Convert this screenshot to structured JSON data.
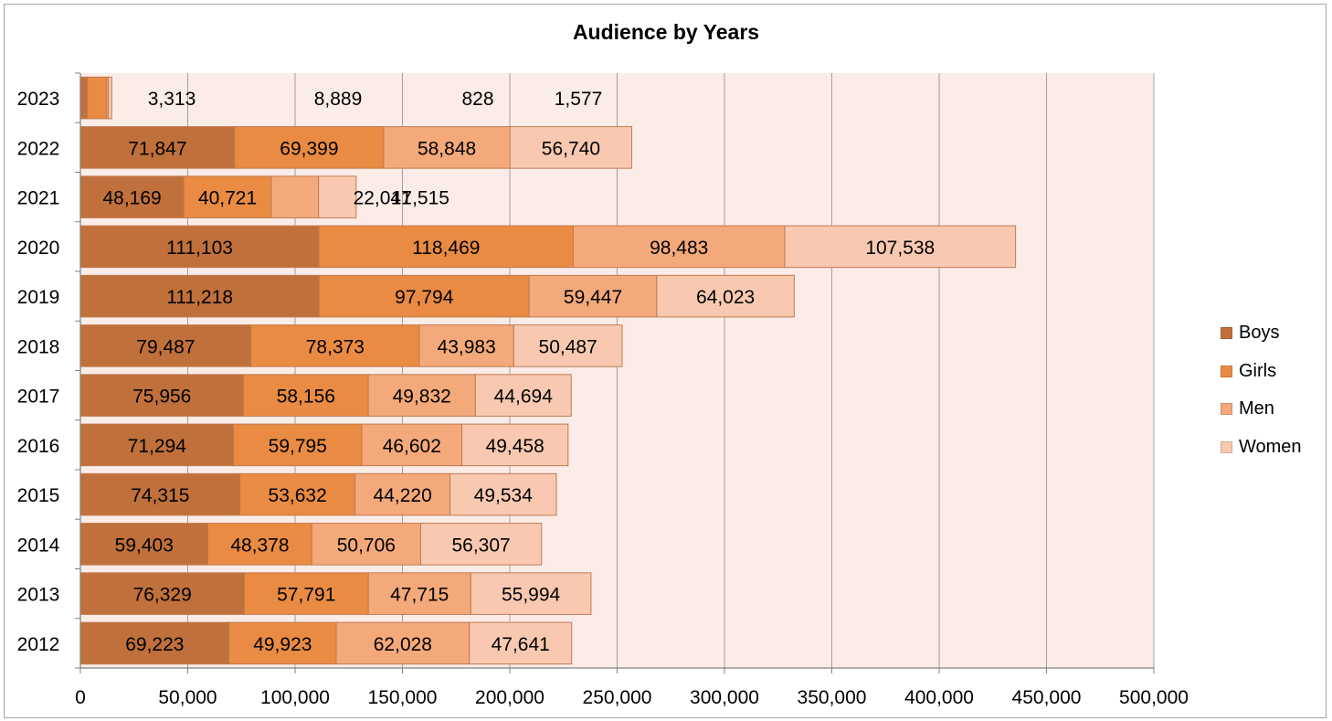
{
  "chart_data": {
    "type": "bar",
    "orientation": "horizontal",
    "stacked": true,
    "title": "Audience by Years",
    "categories": [
      "2023",
      "2022",
      "2021",
      "2020",
      "2019",
      "2018",
      "2017",
      "2016",
      "2015",
      "2014",
      "2013",
      "2012"
    ],
    "series": [
      {
        "name": "Boys",
        "color": "#c0703a",
        "values": [
          3313,
          71847,
          48169,
          111103,
          111218,
          79487,
          75956,
          71294,
          74315,
          59403,
          76329,
          69223
        ]
      },
      {
        "name": "Girls",
        "color": "#e98b43",
        "values": [
          8889,
          69399,
          40721,
          118469,
          97794,
          78373,
          58156,
          59795,
          53632,
          48378,
          57791,
          49923
        ]
      },
      {
        "name": "Men",
        "color": "#f4a97a",
        "values": [
          828,
          58848,
          22041,
          98483,
          59447,
          43983,
          49832,
          46602,
          44220,
          50706,
          47715,
          62028
        ]
      },
      {
        "name": "Women",
        "color": "#f8c9b0",
        "values": [
          1577,
          56740,
          17515,
          107538,
          64023,
          50487,
          44694,
          49458,
          49534,
          56307,
          55994,
          47641
        ]
      }
    ],
    "data_labels": [
      [
        "3,313",
        "8,889",
        "828",
        "1,577"
      ],
      [
        "71,847",
        "69,399",
        "58,848",
        "56,740"
      ],
      [
        "48,169",
        "40,721",
        "22,041",
        "17,515"
      ],
      [
        "111,103",
        "118,469",
        "98,483",
        "107,538"
      ],
      [
        "111,218",
        "97,794",
        "59,447",
        "64,023"
      ],
      [
        "79,487",
        "78,373",
        "43,983",
        "50,487"
      ],
      [
        "75,956",
        "58,156",
        "49,832",
        "44,694"
      ],
      [
        "71,294",
        "59,795",
        "46,602",
        "49,458"
      ],
      [
        "74,315",
        "53,632",
        "44,220",
        "49,534"
      ],
      [
        "59,403",
        "48,378",
        "50,706",
        "56,307"
      ],
      [
        "76,329",
        "57,791",
        "47,715",
        "55,994"
      ],
      [
        "69,223",
        "49,923",
        "62,028",
        "47,641"
      ]
    ],
    "xlim": [
      0,
      500000
    ],
    "x_ticks": [
      0,
      50000,
      100000,
      150000,
      200000,
      250000,
      300000,
      350000,
      400000,
      450000,
      500000
    ],
    "x_tick_labels": [
      "0",
      "50,000",
      "100,000",
      "150,000",
      "200,000",
      "250,000",
      "300,000",
      "350,000",
      "400,000",
      "450,000",
      "500,000"
    ],
    "grid": true,
    "legend_position": "right",
    "plot_background": "#fcece8"
  }
}
